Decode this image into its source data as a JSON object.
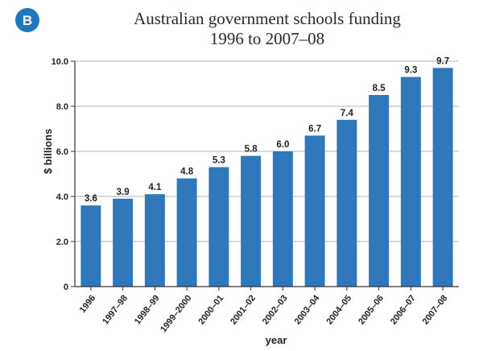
{
  "badge": "B",
  "chart_data": {
    "type": "bar",
    "title": [
      "Australian government schools funding",
      "1996 to 2007–08"
    ],
    "xlabel": "year",
    "ylabel": "$ billions",
    "ylim": [
      0,
      10
    ],
    "yticks": [
      "0",
      "2.0",
      "4.0",
      "6.0",
      "8.0",
      "10.0"
    ],
    "grid": true,
    "categories": [
      "1996",
      "1997–98",
      "1998–99",
      "1999–2000",
      "2000–01",
      "2001–02",
      "2002–03",
      "2003–04",
      "2004–05",
      "2005–06",
      "2006–07",
      "2007–08"
    ],
    "values": [
      3.6,
      3.9,
      4.1,
      4.8,
      5.3,
      5.8,
      6.0,
      6.7,
      7.4,
      8.5,
      9.3,
      9.7
    ],
    "value_labels": [
      "3.6",
      "3.9",
      "4.1",
      "4.8",
      "5.3",
      "5.8",
      "6.0",
      "6.7",
      "7.4",
      "8.5",
      "9.3",
      "9.7"
    ],
    "colors": {
      "bar": "#2f78bb",
      "badge": "#1f78bd"
    }
  }
}
